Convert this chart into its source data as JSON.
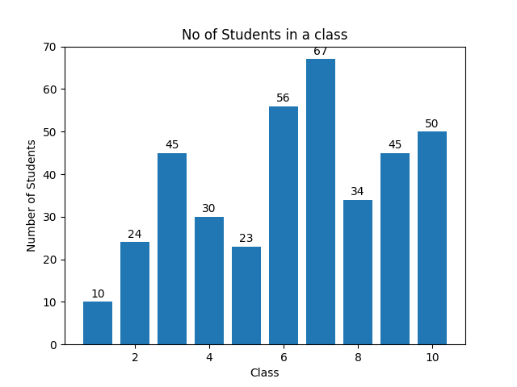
{
  "classes": [
    1,
    2,
    3,
    4,
    5,
    6,
    7,
    8,
    9,
    10
  ],
  "students": [
    10,
    24,
    45,
    30,
    23,
    56,
    67,
    34,
    45,
    50
  ],
  "bar_color": "#2077b4",
  "title": "No of Students in a class",
  "xlabel": "Class",
  "ylabel": "Number of Students",
  "ylim": [
    0,
    70
  ],
  "bar_width": 0.8,
  "xticks": [
    2,
    4,
    6,
    8,
    10
  ],
  "label_fontsize": 10,
  "title_fontsize": 12
}
